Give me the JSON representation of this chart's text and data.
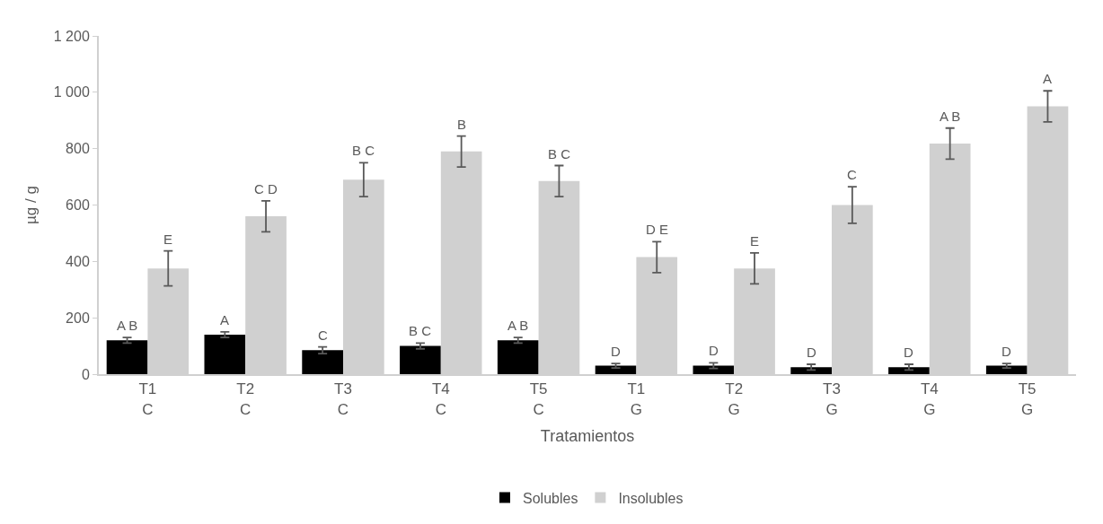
{
  "chart_data": {
    "type": "bar",
    "xlabel": "Tratamientos",
    "ylabel": "µg / g",
    "categories": [
      "T1\nC",
      "T2\nC",
      "T3\nC",
      "T4\nC",
      "T5\nC",
      "T1\nG",
      "T2\nG",
      "T3\nG",
      "T4\nG",
      "T5\nG"
    ],
    "series": [
      {
        "name": "Solubles",
        "color": "#000000",
        "values": [
          120,
          140,
          85,
          100,
          120,
          30,
          30,
          25,
          25,
          30
        ],
        "errors": [
          10,
          10,
          12,
          10,
          10,
          8,
          10,
          10,
          10,
          8
        ],
        "value_labels": [
          "A B",
          "A",
          "C",
          "B C",
          "A B",
          "D",
          "D",
          "D",
          "D",
          "D"
        ]
      },
      {
        "name": "Insolubles",
        "color": "#d0d0d0",
        "values": [
          375,
          560,
          690,
          790,
          685,
          415,
          375,
          600,
          818,
          950
        ],
        "errors": [
          62,
          55,
          60,
          55,
          55,
          55,
          55,
          65,
          55,
          55
        ],
        "value_labels": [
          "E",
          "C D",
          "B C",
          "B",
          "B C",
          "D E",
          "E",
          "C",
          "A B",
          "A"
        ]
      }
    ],
    "ylim": [
      0,
      1200
    ],
    "yticks": [
      0,
      200,
      400,
      600,
      800,
      {
        "value": 1000,
        "label": "1 000"
      },
      {
        "value": 1200,
        "label": "1 200"
      }
    ],
    "legend": "bottom"
  }
}
